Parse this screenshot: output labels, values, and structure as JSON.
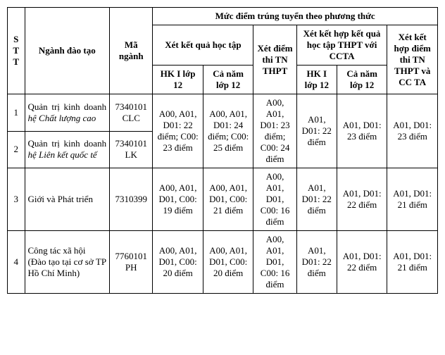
{
  "header": {
    "stt": "S\nT\nT",
    "nganh": "Ngành đào tạo",
    "ma": "Mã ngành",
    "muc": "Mức điểm trúng tuyển theo phương thức",
    "xkq": "Xét kết quả học tập",
    "xtn": "Xét điểm thi TN THPT",
    "xcc": "Xét kết hợp kết quả học tập THPT với CCTA",
    "xlast": "Xét kết hợp điểm thi TN THPT và CC TA",
    "hk1": "HK I lớp 12",
    "cn": "Cả năm lớp 12",
    "hk1b": "HK I lớp 12",
    "cnb": "Cả năm lớp 12"
  },
  "rows": [
    {
      "stt": "1",
      "nganh_plain": "Quản trị kinh doanh ",
      "nganh_ital": "hệ Chất lượng cao",
      "ma": "7340101 CLC"
    },
    {
      "stt": "2",
      "nganh_plain": "Quản trị kinh doanh ",
      "nganh_ital": "hệ Liên kết quốc tế",
      "ma": "7340101 LK"
    },
    {
      "stt": "3",
      "nganh_plain": "Giới và Phát triển",
      "nganh_ital": "",
      "ma": "7310399"
    },
    {
      "stt": "4",
      "nganh_plain": "Công tác xã hội",
      "nganh_paren": "(Đào tạo tại cơ sở TP Hồ Chí Minh)",
      "ma": "7760101 PH"
    }
  ],
  "merge12": {
    "hk1": "A00, A01, D01: 22 điểm; C00: 23 điểm",
    "cn": "A00, A01, D01: 24 điểm; C00: 25 điểm",
    "tn": "A00, A01, D01: 23 điểm; C00: 24 điểm",
    "hk1b": "A01, D01: 22 điểm",
    "cnb": "A01, D01: 23 điểm",
    "last": "A01, D01: 23 điểm"
  },
  "row3": {
    "hk1": "A00, A01, D01, C00: 19 điểm",
    "cn": "A00, A01, D01, C00: 21 điểm",
    "tn": "A00, A01, D01, C00: 16 điểm",
    "hk1b": "A01, D01: 22 điểm",
    "cnb": "A01, D01: 22 điểm",
    "last": "A01, D01: 21 điểm"
  },
  "row4": {
    "hk1": "A00, A01, D01, C00: 20 điểm",
    "cn": "A00, A01, D01, C00: 20 điểm",
    "tn": "A00, A01, D01, C00: 16 điểm",
    "hk1b": "A01, D01: 22 điểm",
    "cnb": "A01, D01: 22 điểm",
    "last": "A01, D01: 21 điểm"
  }
}
